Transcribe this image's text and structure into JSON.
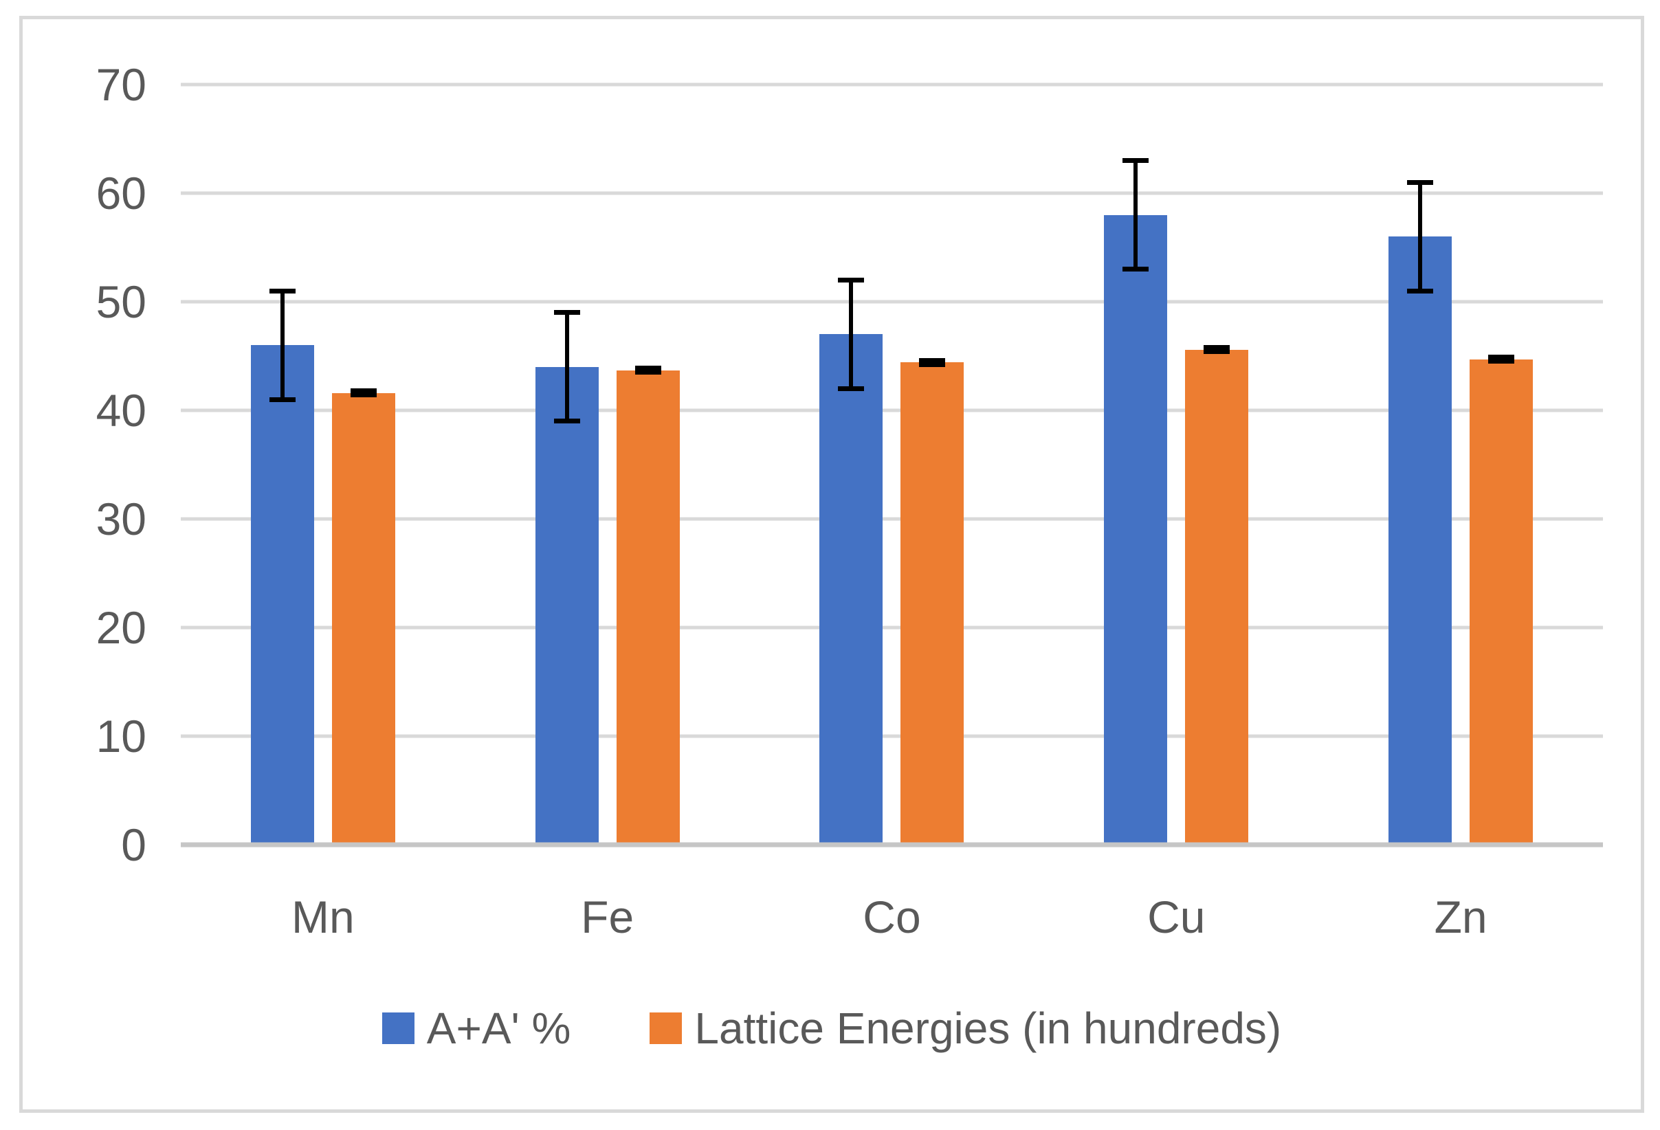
{
  "chart_data": {
    "type": "bar",
    "title": "",
    "categories": [
      "Mn",
      "Fe",
      "Co",
      "Cu",
      "Zn"
    ],
    "series": [
      {
        "name": "A+A' %",
        "color": "#4472C4",
        "values": [
          46,
          44,
          47,
          58,
          56
        ],
        "error_plus": [
          5,
          5,
          5,
          5,
          5
        ],
        "error_minus": [
          5,
          5,
          5,
          5,
          5
        ]
      },
      {
        "name": "Lattice Energies (in hundreds)",
        "color": "#ED7D31",
        "values": [
          41.6,
          43.7,
          44.4,
          45.6,
          44.7
        ],
        "error_plus": [
          0.2,
          0.2,
          0.2,
          0.2,
          0.2
        ],
        "error_minus": [
          0.2,
          0.2,
          0.2,
          0.2,
          0.2
        ]
      }
    ],
    "y_axis": {
      "min": 0,
      "max": 70,
      "step": 10,
      "tick_labels": [
        "0",
        "10",
        "20",
        "30",
        "40",
        "50",
        "60",
        "70"
      ]
    },
    "x_axis": {
      "tick_labels": [
        "Mn",
        "Fe",
        "Co",
        "Cu",
        "Zn"
      ]
    },
    "grid": true,
    "legend_position": "bottom",
    "error_bar_color": "#000000"
  },
  "colors": {
    "series_blue": "#4472C4",
    "series_orange": "#ED7D31",
    "gridline": "#D9D9D9",
    "axis_line": "#C6C6C6",
    "text": "#595959",
    "frame_border": "#D9D9D9",
    "background": "#FFFFFF",
    "error_bar": "#000000"
  }
}
